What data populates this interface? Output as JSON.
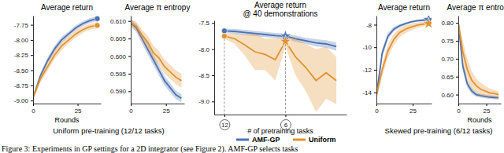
{
  "chart_data": [
    {
      "type": "line",
      "title": "Average return",
      "x_label": "Rounds",
      "x": [
        0,
        4,
        8,
        12,
        16,
        20,
        24,
        28,
        32,
        36
      ],
      "xlim": [
        0,
        38
      ],
      "xticks": [
        0,
        25
      ],
      "ylim": [
        -9.05,
        -7.6
      ],
      "yticks": [
        {
          "value": -9,
          "label": "-9.00"
        },
        -8.75,
        {
          "value": -8.5,
          "label": "-8.50"
        },
        -8.25,
        {
          "value": -8,
          "label": "-8.00"
        },
        -7.75
      ],
      "grid": false,
      "markers": [
        {
          "x": 36,
          "marker": "circle"
        }
      ],
      "series": [
        {
          "name": "AMF-GP",
          "color": "#4c72b0",
          "values": [
            -8.95,
            -8.6,
            -8.35,
            -8.15,
            -8.0,
            -7.9,
            -7.8,
            -7.73,
            -7.68,
            -7.65
          ],
          "error": [
            0.04,
            0.05,
            0.05,
            0.05,
            0.05,
            0.04,
            0.04,
            0.04,
            0.04,
            0.04
          ]
        },
        {
          "name": "Uniform",
          "color": "#e0922f",
          "values": [
            -8.95,
            -8.65,
            -8.45,
            -8.25,
            -8.1,
            -8.0,
            -7.9,
            -7.83,
            -7.78,
            -7.76
          ],
          "error": [
            0.04,
            0.06,
            0.07,
            0.07,
            0.07,
            0.06,
            0.06,
            0.05,
            0.05,
            0.05
          ]
        }
      ]
    },
    {
      "type": "line",
      "title": "Average π entropy",
      "x": [
        0,
        4,
        8,
        12,
        16,
        20,
        24,
        28,
        32,
        36
      ],
      "xlim": [
        0,
        38
      ],
      "xticks": [
        0,
        25
      ],
      "ylim": [
        0.5865,
        0.6115
      ],
      "yticks": [
        {
          "value": 0.59,
          "label": "0.590"
        },
        0.595,
        {
          "value": 0.6,
          "label": "0.600"
        },
        0.605,
        {
          "value": 0.61,
          "label": "0.610"
        }
      ],
      "grid": false,
      "series": [
        {
          "name": "AMF-GP",
          "color": "#4c72b0",
          "values": [
            0.6095,
            0.608,
            0.605,
            0.602,
            0.599,
            0.596,
            0.593,
            0.591,
            0.589,
            0.588
          ],
          "error": [
            0.001,
            0.0012,
            0.0014,
            0.0015,
            0.0015,
            0.0015,
            0.0014,
            0.0013,
            0.0012,
            0.0012
          ]
        },
        {
          "name": "Uniform",
          "color": "#e0922f",
          "values": [
            0.6095,
            0.6085,
            0.606,
            0.604,
            0.601,
            0.5995,
            0.597,
            0.5955,
            0.594,
            0.593
          ],
          "error": [
            0.001,
            0.0012,
            0.0015,
            0.0018,
            0.002,
            0.002,
            0.002,
            0.002,
            0.002,
            0.002
          ]
        }
      ]
    },
    {
      "type": "line",
      "title": "Average return",
      "subtitle": "@ 40 demonstrations",
      "x_label": "# of pretraining tasks",
      "x": [
        12,
        11,
        10,
        9,
        8,
        7,
        6,
        5,
        4,
        3,
        2,
        1
      ],
      "xlim": [
        13,
        0
      ],
      "xticks": [
        12,
        6
      ],
      "ylim": [
        -9.25,
        -7.45
      ],
      "yticks": [
        {
          "value": -9,
          "label": "-9.0"
        },
        -8.5,
        {
          "value": -8,
          "label": "-8.0"
        },
        -7.5
      ],
      "grid": false,
      "legend": "bottom",
      "markers": [
        {
          "x": 12,
          "marker": "circle"
        },
        {
          "x": 6,
          "marker": "star"
        }
      ],
      "series": [
        {
          "name": "AMF-GP",
          "color": "#4c72b0",
          "values": [
            -7.65,
            -7.66,
            -7.68,
            -7.7,
            -7.72,
            -7.74,
            -7.75,
            -7.8,
            -7.84,
            -7.88,
            -7.9,
            -7.95
          ],
          "error": [
            0.04,
            0.05,
            0.05,
            0.05,
            0.05,
            0.05,
            0.05,
            0.06,
            0.06,
            0.07,
            0.07,
            0.08
          ]
        },
        {
          "name": "Uniform",
          "color": "#e0922f",
          "values": [
            -7.75,
            -7.8,
            -7.92,
            -8.05,
            -8.1,
            -8.2,
            -7.85,
            -8.15,
            -8.35,
            -8.6,
            -8.45,
            -8.6
          ],
          "error": [
            0.05,
            0.1,
            0.2,
            0.35,
            0.3,
            0.4,
            0.1,
            0.35,
            0.45,
            0.6,
            0.5,
            0.45
          ]
        }
      ]
    },
    {
      "type": "line",
      "title": "Average return",
      "x": [
        0,
        4,
        8,
        12,
        16,
        20,
        24,
        28,
        32,
        36
      ],
      "xlim": [
        0,
        38
      ],
      "xticks": [
        0,
        25
      ],
      "ylim": [
        -15,
        -7.2
      ],
      "yticks": [
        -14,
        -12,
        -10,
        -8
      ],
      "grid": false,
      "markers": [
        {
          "x": 36,
          "marker": "star"
        }
      ],
      "series": [
        {
          "name": "AMF-GP",
          "color": "#4c72b0",
          "values": [
            -14.3,
            -10.5,
            -9.0,
            -8.4,
            -8.1,
            -7.9,
            -7.75,
            -7.65,
            -7.6,
            -7.55
          ],
          "error": [
            0.3,
            0.4,
            0.3,
            0.2,
            0.15,
            0.12,
            0.1,
            0.1,
            0.1,
            0.1
          ]
        },
        {
          "name": "Uniform",
          "color": "#e0922f",
          "values": [
            -14.3,
            -12.0,
            -10.3,
            -9.3,
            -8.7,
            -8.4,
            -8.2,
            -8.05,
            -7.95,
            -7.9
          ],
          "error": [
            0.3,
            0.6,
            0.6,
            0.5,
            0.4,
            0.35,
            0.3,
            0.25,
            0.2,
            0.2
          ]
        }
      ]
    },
    {
      "type": "line",
      "title": "Average π entropy",
      "x_label": "Rounds",
      "x": [
        0,
        4,
        8,
        12,
        16,
        20,
        24,
        28,
        32,
        36
      ],
      "xlim": [
        0,
        38
      ],
      "xticks": [
        0,
        25
      ],
      "ylim": [
        0.575,
        0.82
      ],
      "yticks": [
        {
          "value": 0.6,
          "label": "0.60"
        },
        0.65,
        {
          "value": 0.7,
          "label": "0.70"
        },
        0.75,
        {
          "value": 0.8,
          "label": "0.80"
        }
      ],
      "grid": false,
      "series": [
        {
          "name": "AMF-GP",
          "color": "#4c72b0",
          "values": [
            0.8,
            0.68,
            0.63,
            0.61,
            0.6,
            0.597,
            0.595,
            0.593,
            0.592,
            0.591
          ],
          "error": [
            0.005,
            0.015,
            0.01,
            0.008,
            0.006,
            0.005,
            0.005,
            0.005,
            0.005,
            0.005
          ]
        },
        {
          "name": "Uniform",
          "color": "#e0922f",
          "values": [
            0.8,
            0.72,
            0.67,
            0.64,
            0.625,
            0.615,
            0.61,
            0.605,
            0.603,
            0.6
          ],
          "error": [
            0.005,
            0.03,
            0.03,
            0.025,
            0.02,
            0.018,
            0.015,
            0.012,
            0.01,
            0.01
          ]
        }
      ]
    }
  ],
  "group_labels": [
    "Uniform pre-training (12/12 tasks)",
    "Skewed pre-training (6/12 tasks)"
  ],
  "caption": "Figure 3: Experiments in GP settings for a 2D integrator (see Figure 2). AMF-GP selects tasks"
}
